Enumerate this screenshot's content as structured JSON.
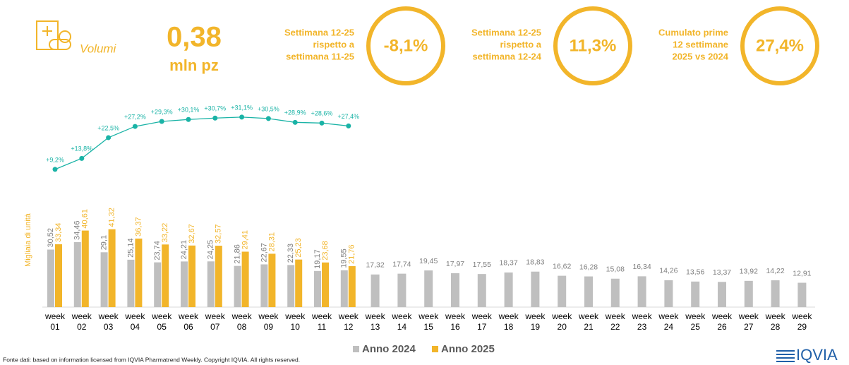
{
  "header": {
    "section": "Volumi",
    "volume": "0,38",
    "unit": "mln pz",
    "kpis": [
      {
        "label": [
          "Settimana 12-25",
          "rispetto a",
          "settimana 11-25"
        ],
        "value": "-8,1%"
      },
      {
        "label": [
          "Settimana 12-25",
          "rispetto a",
          "settimana 12-24"
        ],
        "value": "11,3%"
      },
      {
        "label": [
          "Cumulato prime",
          "12 settimane",
          "2025 vs 2024"
        ],
        "value": "27,4%"
      }
    ]
  },
  "chart_data": {
    "type": "bar",
    "y_label": "Migliaia di unità",
    "categories": [
      "week 01",
      "week 02",
      "week 03",
      "week 04",
      "week 05",
      "week 06",
      "week 07",
      "week 08",
      "week 09",
      "week 10",
      "week 11",
      "week 12",
      "week 13",
      "week 14",
      "week 15",
      "week 16",
      "week 17",
      "week 18",
      "week 19",
      "week 20",
      "week 21",
      "week 22",
      "week 23",
      "week 24",
      "week 25",
      "week 26",
      "week 27",
      "week 28",
      "week 29"
    ],
    "series": [
      {
        "name": "Anno 2024",
        "color": "#bfbfbf",
        "values": [
          30.52,
          34.46,
          29.1,
          25.14,
          23.74,
          24.21,
          24.25,
          21.86,
          22.67,
          22.33,
          19.17,
          19.55,
          17.32,
          17.74,
          19.45,
          17.97,
          17.55,
          18.37,
          18.83,
          16.62,
          16.28,
          15.08,
          16.34,
          14.26,
          13.56,
          13.37,
          13.92,
          14.22,
          12.91
        ],
        "value_labels": [
          "30,52",
          "34,46",
          "29,1",
          "25,14",
          "23,74",
          "24,21",
          "24,25",
          "21,86",
          "22,67",
          "22,33",
          "19,17",
          "19,55",
          "17,32",
          "17,74",
          "19,45",
          "17,97",
          "17,55",
          "18,37",
          "18,83",
          "16,62",
          "16,28",
          "15,08",
          "16,34",
          "14,26",
          "13,56",
          "13,37",
          "13,92",
          "14,22",
          "12,91"
        ]
      },
      {
        "name": "Anno 2025",
        "color": "#f2b52a",
        "values": [
          33.34,
          40.61,
          41.32,
          36.37,
          33.22,
          32.67,
          32.57,
          29.41,
          28.31,
          25.23,
          23.68,
          21.76,
          null,
          null,
          null,
          null,
          null,
          null,
          null,
          null,
          null,
          null,
          null,
          null,
          null,
          null,
          null,
          null,
          null
        ],
        "value_labels": [
          "33,34",
          "40,61",
          "41,32",
          "36,37",
          "33,22",
          "32,67",
          "32,57",
          "29,41",
          "28,31",
          "25,23",
          "23,68",
          "21,76",
          null,
          null,
          null,
          null,
          null,
          null,
          null,
          null,
          null,
          null,
          null,
          null,
          null,
          null,
          null,
          null,
          null
        ]
      }
    ],
    "growth": {
      "color": "#1ab3a6",
      "values": [
        9.2,
        13.8,
        22.5,
        27.2,
        29.3,
        30.1,
        30.7,
        31.1,
        30.5,
        28.9,
        28.6,
        27.4
      ],
      "value_labels": [
        "+9,2%",
        "+13,8%",
        "+22,5%",
        "+27,2%",
        "+29,3%",
        "+30,1%",
        "+30,7%",
        "+31,1%",
        "+30,5%",
        "+28,9%",
        "+28,6%",
        "+27,4%"
      ]
    },
    "legend": "bottom"
  },
  "footer": {
    "source": "Fonte dati: based on information licensed from IQVIA Pharmatrend Weekly. Copyright IQVIA. All rights reserved.",
    "logo": "IQVIA"
  }
}
